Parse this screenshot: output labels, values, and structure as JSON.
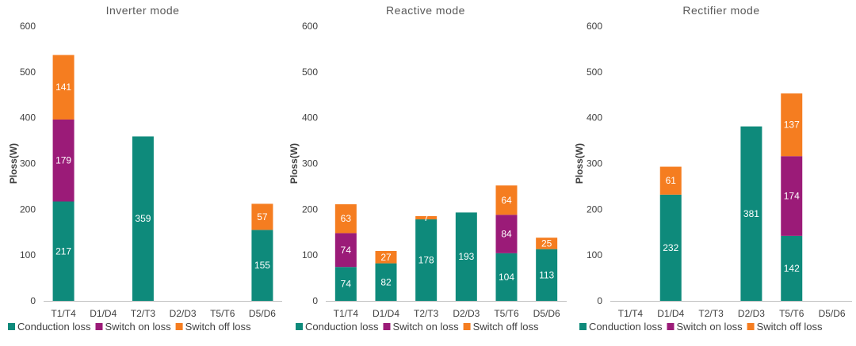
{
  "colors": {
    "conduction": "#0E8A7B",
    "switch_on": "#9B1B78",
    "switch_off": "#F57D20",
    "axis": "#BFBFBF"
  },
  "chart_data": [
    {
      "type": "bar",
      "stacked": true,
      "title": "Inverter mode",
      "ylabel": "Ploss(W)",
      "ylim": [
        0,
        600
      ],
      "yticks": [
        0,
        100,
        200,
        300,
        400,
        500,
        600
      ],
      "categories": [
        "T1/T4",
        "D1/D4",
        "T2/T3",
        "D2/D3",
        "T5/T6",
        "D5/D6"
      ],
      "series": [
        {
          "name": "Conduction loss",
          "values": [
            217,
            0,
            359,
            0,
            0,
            155
          ]
        },
        {
          "name": "Switch on loss",
          "values": [
            179,
            0,
            0,
            0,
            0,
            0
          ]
        },
        {
          "name": "Switch off loss",
          "values": [
            141,
            0,
            0,
            0,
            0,
            57
          ]
        }
      ],
      "legend": "bottom"
    },
    {
      "type": "bar",
      "stacked": true,
      "title": "Reactive mode",
      "ylabel": "Ploss(W)",
      "ylim": [
        0,
        600
      ],
      "yticks": [
        0,
        100,
        200,
        300,
        400,
        500,
        600
      ],
      "categories": [
        "T1/T4",
        "D1/D4",
        "T2/T3",
        "D2/D3",
        "T5/T6",
        "D5/D6"
      ],
      "series": [
        {
          "name": "Conduction loss",
          "values": [
            74,
            82,
            178,
            193,
            104,
            113
          ]
        },
        {
          "name": "Switch on loss",
          "values": [
            74,
            0,
            0,
            0,
            84,
            0
          ]
        },
        {
          "name": "Switch off loss",
          "values": [
            63,
            27,
            7,
            0,
            64,
            25
          ]
        }
      ],
      "legend": "bottom"
    },
    {
      "type": "bar",
      "stacked": true,
      "title": "Rectifier mode",
      "ylabel": "Ploss(W)",
      "ylim": [
        0,
        600
      ],
      "yticks": [
        0,
        100,
        200,
        300,
        400,
        500,
        600
      ],
      "categories": [
        "T1/T4",
        "D1/D4",
        "T2/T3",
        "D2/D3",
        "T5/T6",
        "D5/D6"
      ],
      "series": [
        {
          "name": "Conduction loss",
          "values": [
            0,
            232,
            0,
            381,
            142,
            0
          ]
        },
        {
          "name": "Switch on loss",
          "values": [
            0,
            0,
            0,
            0,
            174,
            0
          ]
        },
        {
          "name": "Switch off loss",
          "values": [
            0,
            61,
            0,
            0,
            137,
            0
          ]
        }
      ],
      "legend": "bottom"
    }
  ]
}
